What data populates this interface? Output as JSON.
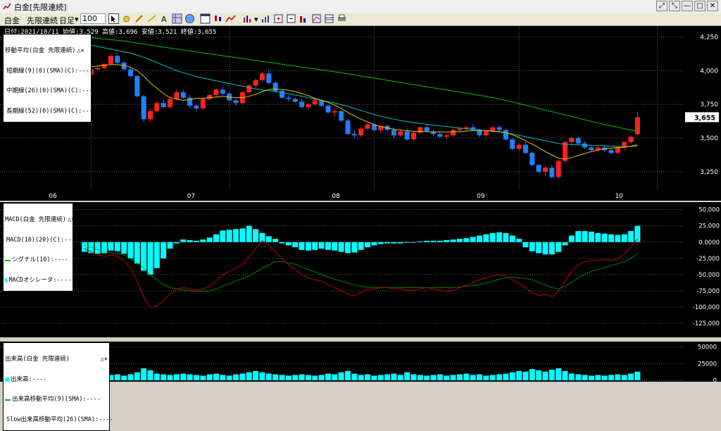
{
  "window": {
    "title": "白金[先限連続]",
    "buttons": [
      "⤢",
      "⤡",
      "—",
      "□",
      "✕"
    ]
  },
  "toolbar": {
    "symbol": "白金",
    "contract": "先限連続",
    "period": "日足",
    "bars": "100"
  },
  "info_line": "日付:2021/10/11 始値:3,529 高値:3,696 安値:3,521 終値:3,655",
  "price_panel": {
    "legend_title": "移動平均(白金 先限連続)",
    "legend_items": [
      {
        "label": "短期線(9)(0)(SMA)(C):----",
        "color": "#e8c000"
      },
      {
        "label": "中期線(26)(0)(SMA)(C):----",
        "color": "#00c0c0"
      },
      {
        "label": "長期線(52)(0)(SMA)(C):----",
        "color": "#00c000"
      }
    ],
    "y_ticks": [
      {
        "label": "4,250",
        "v": 4250
      },
      {
        "label": "4,000",
        "v": 4000
      },
      {
        "label": "3,750",
        "v": 3750
      },
      {
        "label": "3,500",
        "v": 3500
      },
      {
        "label": "3,250",
        "v": 3250
      }
    ],
    "last_price": "3,655",
    "x_labels": [
      {
        "label": "06",
        "i": 1
      },
      {
        "label": "07",
        "i": 22
      },
      {
        "label": "08",
        "i": 44
      },
      {
        "label": "09",
        "i": 66
      },
      {
        "label": "10",
        "i": 87
      }
    ]
  },
  "macd_panel": {
    "legend_items": [
      {
        "label": "MACD(白金 先限連続)",
        "color": ""
      },
      {
        "label": "MACD(10)(20)(C):----",
        "color": "#c00000"
      },
      {
        "label": "シグナル(10):----",
        "color": "#00c000"
      },
      {
        "label": "MACDオシレータ:----",
        "color": "#00ffff"
      }
    ],
    "y_ticks": [
      {
        "label": "50,000",
        "v": 50000
      },
      {
        "label": "25,000",
        "v": 25000
      },
      {
        "label": "0.0000",
        "v": 0
      },
      {
        "label": "-25,000",
        "v": -25000
      },
      {
        "label": "-50,000",
        "v": -50000
      },
      {
        "label": "-75,000",
        "v": -75000
      },
      {
        "label": "-100,000",
        "v": -100000
      },
      {
        "label": "-125,000",
        "v": -125000
      }
    ]
  },
  "volume_panel": {
    "legend_items": [
      {
        "label": "出来高(白金 先限連続)",
        "color": ""
      },
      {
        "label": "出来高:----",
        "color": "#00ffff"
      },
      {
        "label": "出来高移動平均(9)(SMA):----",
        "color": "#00c000"
      },
      {
        "label": "Slow出来高移動平均(26)(SMA):----",
        "color": "#c00000"
      }
    ],
    "y_ticks": [
      {
        "label": "50000",
        "v": 50000
      },
      {
        "label": "25000",
        "v": 25000
      },
      {
        "label": "0",
        "v": 0
      }
    ]
  },
  "colors": {
    "up": "#ff2020",
    "down": "#2080ff",
    "grid": "#606060",
    "osc": "#00ffff"
  },
  "chart_data": {
    "type": "candlestick",
    "ylim_price": [
      3150,
      4300
    ],
    "ylim_macd": [
      -140000,
      55000
    ],
    "ylim_volume": [
      0,
      55000
    ],
    "candles": [
      [
        3990,
        4000,
        3950,
        3970
      ],
      [
        3970,
        4020,
        3960,
        4010
      ],
      [
        4010,
        4030,
        4000,
        4020
      ],
      [
        4020,
        4060,
        4010,
        4050
      ],
      [
        4050,
        4120,
        4040,
        4110
      ],
      [
        4110,
        4120,
        4050,
        4060
      ],
      [
        4060,
        4070,
        4000,
        4010
      ],
      [
        4010,
        4030,
        3950,
        3960
      ],
      [
        3960,
        3970,
        3800,
        3810
      ],
      [
        3810,
        3820,
        3620,
        3640
      ],
      [
        3640,
        3720,
        3620,
        3700
      ],
      [
        3700,
        3780,
        3690,
        3760
      ],
      [
        3760,
        3790,
        3720,
        3730
      ],
      [
        3730,
        3810,
        3720,
        3790
      ],
      [
        3790,
        3860,
        3780,
        3840
      ],
      [
        3840,
        3860,
        3790,
        3800
      ],
      [
        3800,
        3820,
        3720,
        3740
      ],
      [
        3740,
        3750,
        3700,
        3720
      ],
      [
        3720,
        3800,
        3710,
        3790
      ],
      [
        3790,
        3830,
        3780,
        3820
      ],
      [
        3820,
        3870,
        3810,
        3860
      ],
      [
        3860,
        3880,
        3820,
        3830
      ],
      [
        3830,
        3840,
        3770,
        3780
      ],
      [
        3780,
        3790,
        3740,
        3760
      ],
      [
        3760,
        3850,
        3750,
        3840
      ],
      [
        3840,
        3900,
        3830,
        3890
      ],
      [
        3890,
        3940,
        3870,
        3930
      ],
      [
        3930,
        3990,
        3920,
        3980
      ],
      [
        3980,
        4010,
        3900,
        3910
      ],
      [
        3910,
        3920,
        3840,
        3850
      ],
      [
        3850,
        3860,
        3790,
        3800
      ],
      [
        3800,
        3820,
        3770,
        3790
      ],
      [
        3790,
        3800,
        3760,
        3770
      ],
      [
        3770,
        3790,
        3720,
        3730
      ],
      [
        3730,
        3760,
        3710,
        3750
      ],
      [
        3750,
        3790,
        3740,
        3780
      ],
      [
        3780,
        3790,
        3730,
        3740
      ],
      [
        3740,
        3750,
        3680,
        3690
      ],
      [
        3690,
        3720,
        3660,
        3700
      ],
      [
        3700,
        3710,
        3620,
        3630
      ],
      [
        3630,
        3640,
        3520,
        3530
      ],
      [
        3530,
        3560,
        3500,
        3520
      ],
      [
        3520,
        3580,
        3510,
        3570
      ],
      [
        3570,
        3610,
        3560,
        3600
      ],
      [
        3600,
        3610,
        3550,
        3560
      ],
      [
        3560,
        3600,
        3540,
        3590
      ],
      [
        3590,
        3600,
        3550,
        3560
      ],
      [
        3560,
        3580,
        3500,
        3520
      ],
      [
        3520,
        3560,
        3510,
        3550
      ],
      [
        3550,
        3570,
        3480,
        3490
      ],
      [
        3490,
        3550,
        3480,
        3540
      ],
      [
        3540,
        3590,
        3530,
        3580
      ],
      [
        3580,
        3600,
        3540,
        3550
      ],
      [
        3550,
        3560,
        3510,
        3530
      ],
      [
        3530,
        3550,
        3500,
        3510
      ],
      [
        3510,
        3530,
        3490,
        3520
      ],
      [
        3520,
        3570,
        3510,
        3560
      ],
      [
        3560,
        3580,
        3540,
        3570
      ],
      [
        3570,
        3590,
        3550,
        3580
      ],
      [
        3580,
        3600,
        3550,
        3560
      ],
      [
        3560,
        3570,
        3510,
        3520
      ],
      [
        3520,
        3560,
        3510,
        3550
      ],
      [
        3550,
        3590,
        3540,
        3580
      ],
      [
        3580,
        3600,
        3550,
        3560
      ],
      [
        3560,
        3570,
        3480,
        3490
      ],
      [
        3490,
        3500,
        3410,
        3420
      ],
      [
        3420,
        3460,
        3400,
        3450
      ],
      [
        3450,
        3470,
        3380,
        3390
      ],
      [
        3390,
        3400,
        3290,
        3300
      ],
      [
        3300,
        3310,
        3240,
        3250
      ],
      [
        3250,
        3290,
        3220,
        3280
      ],
      [
        3280,
        3300,
        3200,
        3210
      ],
      [
        3210,
        3340,
        3200,
        3330
      ],
      [
        3330,
        3480,
        3320,
        3470
      ],
      [
        3470,
        3510,
        3440,
        3500
      ],
      [
        3500,
        3510,
        3450,
        3460
      ],
      [
        3460,
        3480,
        3420,
        3430
      ],
      [
        3430,
        3450,
        3400,
        3410
      ],
      [
        3410,
        3440,
        3400,
        3430
      ],
      [
        3430,
        3450,
        3400,
        3410
      ],
      [
        3410,
        3420,
        3380,
        3390
      ],
      [
        3390,
        3440,
        3380,
        3430
      ],
      [
        3430,
        3480,
        3410,
        3470
      ],
      [
        3470,
        3520,
        3460,
        3510
      ],
      [
        3529,
        3696,
        3521,
        3655
      ]
    ],
    "ma_short": [
      4030,
      4030,
      4035,
      4040,
      4045,
      4045,
      4040,
      4025,
      4000,
      3960,
      3910,
      3870,
      3830,
      3800,
      3790,
      3780,
      3785,
      3795,
      3795,
      3800,
      3805,
      3810,
      3805,
      3800,
      3800,
      3810,
      3825,
      3845,
      3860,
      3865,
      3860,
      3855,
      3845,
      3830,
      3815,
      3795,
      3780,
      3765,
      3745,
      3720,
      3690,
      3665,
      3640,
      3620,
      3600,
      3585,
      3575,
      3565,
      3560,
      3555,
      3550,
      3550,
      3548,
      3546,
      3545,
      3545,
      3546,
      3548,
      3552,
      3555,
      3556,
      3555,
      3552,
      3548,
      3540,
      3525,
      3505,
      3480,
      3455,
      3430,
      3400,
      3375,
      3350,
      3345,
      3355,
      3370,
      3385,
      3400,
      3410,
      3420,
      3425,
      3430,
      3432,
      3440,
      3450
    ],
    "ma_mid": [
      4200,
      4190,
      4180,
      4170,
      4160,
      4150,
      4140,
      4130,
      4115,
      4100,
      4080,
      4060,
      4040,
      4020,
      4000,
      3985,
      3970,
      3955,
      3945,
      3935,
      3925,
      3915,
      3905,
      3895,
      3885,
      3875,
      3865,
      3858,
      3852,
      3845,
      3838,
      3830,
      3820,
      3810,
      3800,
      3790,
      3780,
      3770,
      3760,
      3748,
      3735,
      3720,
      3705,
      3690,
      3675,
      3662,
      3650,
      3640,
      3630,
      3622,
      3615,
      3608,
      3602,
      3596,
      3590,
      3585,
      3580,
      3575,
      3570,
      3565,
      3560,
      3555,
      3550,
      3545,
      3538,
      3530,
      3520,
      3510,
      3500,
      3490,
      3480,
      3470,
      3460,
      3455,
      3452,
      3450,
      3448,
      3446,
      3444,
      3442,
      3440,
      3438,
      3436,
      3438,
      3440
    ],
    "ma_long": [
      4250,
      4245,
      4240,
      4235,
      4230,
      4225,
      4220,
      4212,
      4205,
      4198,
      4190,
      4182,
      4175,
      4168,
      4160,
      4153,
      4146,
      4139,
      4132,
      4125,
      4118,
      4111,
      4104,
      4097,
      4090,
      4083,
      4076,
      4069,
      4062,
      4055,
      4048,
      4041,
      4034,
      4027,
      4020,
      4013,
      4006,
      3999,
      3992,
      3985,
      3977,
      3969,
      3961,
      3953,
      3945,
      3937,
      3929,
      3921,
      3913,
      3905,
      3897,
      3889,
      3881,
      3873,
      3865,
      3857,
      3849,
      3841,
      3833,
      3825,
      3817,
      3809,
      3800,
      3790,
      3780,
      3768,
      3756,
      3744,
      3732,
      3720,
      3708,
      3696,
      3684,
      3672,
      3660,
      3648,
      3636,
      3624,
      3612,
      3600,
      3590,
      3580,
      3570,
      3560,
      3550
    ],
    "macd": [
      -10000,
      -15000,
      -20000,
      -22000,
      -20000,
      -22000,
      -28000,
      -40000,
      -60000,
      -85000,
      -100000,
      -98000,
      -90000,
      -80000,
      -72000,
      -70000,
      -72000,
      -74000,
      -72000,
      -68000,
      -60000,
      -50000,
      -45000,
      -40000,
      -35000,
      -22000,
      -10000,
      2000,
      -5000,
      -15000,
      -25000,
      -35000,
      -42000,
      -50000,
      -55000,
      -58000,
      -60000,
      -66000,
      -70000,
      -75000,
      -80000,
      -82000,
      -78000,
      -72000,
      -72000,
      -70000,
      -70000,
      -72000,
      -72000,
      -74000,
      -74000,
      -72000,
      -70000,
      -72000,
      -74000,
      -76000,
      -74000,
      -70000,
      -66000,
      -62000,
      -58000,
      -55000,
      -52000,
      -50000,
      -52000,
      -58000,
      -64000,
      -70000,
      -78000,
      -82000,
      -80000,
      -84000,
      -76000,
      -60000,
      -45000,
      -35000,
      -30000,
      -28000,
      -28000,
      -27000,
      -28000,
      -26000,
      -18000,
      -8000,
      5000
    ],
    "signal": [
      -5000,
      -8000,
      -12000,
      -15000,
      -17000,
      -18000,
      -20000,
      -25000,
      -32000,
      -40000,
      -50000,
      -58000,
      -65000,
      -70000,
      -72000,
      -74000,
      -75000,
      -76000,
      -76000,
      -75000,
      -72000,
      -68000,
      -64000,
      -60000,
      -56000,
      -52000,
      -46000,
      -40000,
      -35000,
      -30000,
      -30000,
      -32000,
      -34000,
      -38000,
      -42000,
      -46000,
      -50000,
      -54000,
      -57000,
      -60000,
      -63000,
      -66000,
      -68000,
      -69000,
      -70000,
      -70000,
      -70000,
      -70000,
      -70000,
      -70000,
      -70000,
      -70000,
      -70000,
      -70000,
      -70000,
      -70000,
      -70000,
      -69000,
      -68000,
      -67000,
      -65000,
      -63000,
      -60000,
      -57000,
      -55000,
      -54000,
      -55000,
      -56000,
      -58000,
      -62000,
      -66000,
      -70000,
      -72000,
      -68000,
      -62000,
      -55000,
      -49000,
      -45000,
      -42000,
      -39000,
      -36000,
      -33000,
      -30000,
      -25000,
      -18000
    ],
    "oscillator": [
      -15000,
      -17000,
      -18000,
      -17000,
      -13000,
      -14000,
      -18000,
      -25000,
      -33000,
      -44000,
      -50000,
      -40000,
      -25000,
      -10000,
      -2000,
      4000,
      3000,
      2000,
      4000,
      7000,
      12000,
      18000,
      19000,
      20000,
      21000,
      25000,
      20000,
      14000,
      9000,
      5000,
      -2000,
      -5000,
      -8000,
      -12000,
      -13000,
      -12000,
      -10000,
      -12000,
      -13000,
      -15000,
      -17000,
      -16000,
      -12000,
      -8000,
      -5000,
      -3000,
      -2000,
      -2000,
      -2000,
      -1000,
      0,
      1000,
      2000,
      2000,
      2000,
      3000,
      4000,
      5000,
      6000,
      8000,
      10000,
      12000,
      14000,
      15000,
      14000,
      10000,
      5000,
      -8000,
      -14000,
      -17000,
      -19000,
      -19000,
      -15000,
      -5000,
      10000,
      17000,
      17000,
      16000,
      14000,
      13000,
      12000,
      11000,
      12000,
      17000,
      25000
    ],
    "volume": [
      9000,
      8000,
      7000,
      10000,
      8000,
      9000,
      7000,
      9000,
      12000,
      18000,
      15000,
      10000,
      9000,
      8000,
      9000,
      10000,
      9000,
      8000,
      7000,
      9000,
      10000,
      8000,
      7000,
      9000,
      10000,
      12000,
      14000,
      12000,
      10000,
      9000,
      8000,
      7000,
      8000,
      9000,
      8000,
      7000,
      8000,
      10000,
      9000,
      12000,
      14000,
      10000,
      8000,
      9000,
      7000,
      8000,
      9000,
      10000,
      8000,
      12000,
      9000,
      8000,
      7000,
      8000,
      9000,
      7000,
      8000,
      9000,
      10000,
      8000,
      9000,
      7000,
      8000,
      9000,
      10000,
      12000,
      14000,
      13000,
      17000,
      15000,
      13000,
      16000,
      18000,
      14000,
      10000,
      9000,
      8000,
      7000,
      8000,
      7000,
      8000,
      9000,
      8000,
      10000,
      13000
    ],
    "vol_ma9": [],
    "vol_ma26": []
  }
}
